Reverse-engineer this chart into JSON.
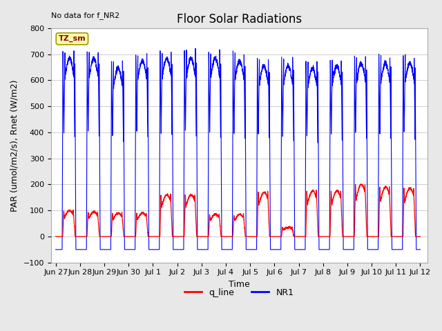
{
  "title": "Floor Solar Radiations",
  "top_left_text": "No data for f_NR2",
  "ylabel": "PAR (umol/m2/s), Rnet (W/m2)",
  "xlabel": "Time",
  "ylim": [
    -100,
    800
  ],
  "yticks": [
    -100,
    0,
    100,
    200,
    300,
    400,
    500,
    600,
    700,
    800
  ],
  "background_color": "#e8e8e8",
  "axes_bg_color": "#f0f0f0",
  "legend_labels": [
    "q_line",
    "NR1"
  ],
  "legend_colors": [
    "#ff0000",
    "#0000ff"
  ],
  "tz_sm_box_color": "#ffffaa",
  "tz_sm_text_color": "#8b0000",
  "tz_sm_border_color": "#999900",
  "title_fontsize": 12,
  "label_fontsize": 9,
  "tick_fontsize": 8,
  "tick_labels": [
    "Jun 27",
    "Jun 28",
    "Jun 29",
    "Jun 30",
    "Jul 1",
    "Jul 2",
    "Jul 3",
    "Jul 4",
    "Jul 5",
    "Jul 6",
    "Jul 7",
    "Jul 8",
    "Jul 9",
    "Jul 10",
    "Jul 11",
    "Jul 12"
  ]
}
